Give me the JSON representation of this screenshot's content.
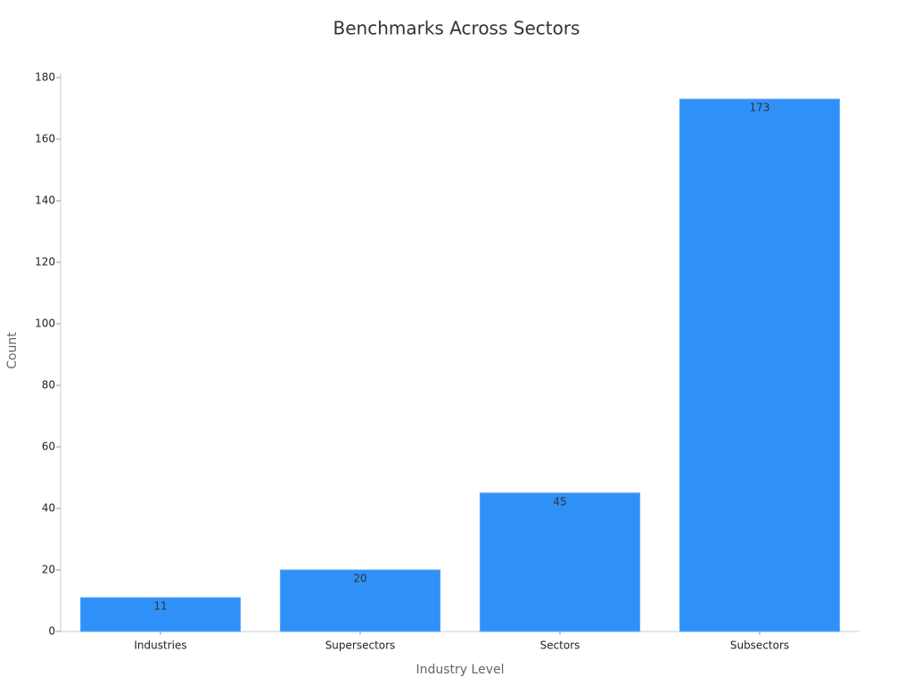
{
  "chart_data": {
    "type": "bar",
    "title": "Benchmarks Across Sectors",
    "x_label": "Industry Level",
    "y_label": "Count",
    "categories": [
      "Industries",
      "Supersectors",
      "Sectors",
      "Subsectors"
    ],
    "values": [
      11,
      20,
      45,
      173
    ],
    "color": "#2f91f8",
    "ylim": [
      0,
      180
    ],
    "yticks": [
      0,
      20,
      40,
      60,
      80,
      100,
      120,
      140,
      160,
      180
    ],
    "grid": false
  }
}
